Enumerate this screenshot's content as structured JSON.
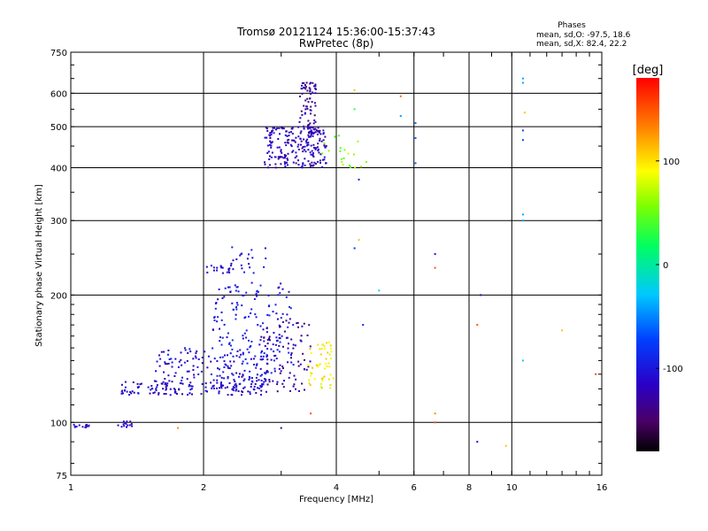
{
  "header": {
    "title_line1": "Tromsø 20121124 15:36:00-15:37:43",
    "title_line2": "RwPretec (8p)"
  },
  "stats": {
    "heading": "Phases",
    "o_line": "mean, sd,O: -97.5, 18.6",
    "x_line": "mean, sd,X:  82.4, 22.2"
  },
  "colorbar": {
    "unit_label": "[deg]",
    "tick_labels": [
      "100",
      "0",
      "-100"
    ],
    "tick_values": [
      100,
      0,
      -100
    ],
    "range": [
      -180,
      180
    ]
  },
  "chart_data": {
    "type": "scatter",
    "title": "Tromsø 20121124 15:36:00-15:37:43",
    "subtitle": "RwPretec (8p)",
    "xlabel": "Frequency [MHz]",
    "ylabel": "Stationary phase Virtual Height [km]",
    "xscale": "log",
    "yscale": "log",
    "xlim": [
      1,
      16
    ],
    "ylim": [
      75,
      750
    ],
    "xticks": [
      1,
      2,
      4,
      6,
      8,
      10,
      16
    ],
    "xtick_labels": [
      "1",
      "2",
      "4",
      "6",
      "8",
      "10",
      "16"
    ],
    "yticks": [
      75,
      100,
      200,
      300,
      400,
      500,
      600,
      750
    ],
    "ytick_labels": [
      "75",
      "100",
      "200",
      "300",
      "400",
      "500",
      "600",
      "750"
    ],
    "grid": true,
    "color_encodes": "phase [deg]",
    "clusters": [
      {
        "x": [
          1.0,
          1.1
        ],
        "y": [
          97,
          99
        ],
        "phase": -110,
        "count": 14
      },
      {
        "x": [
          1.28,
          1.38
        ],
        "y": [
          97,
          102
        ],
        "phase": -112,
        "count": 14
      },
      {
        "x": [
          1.3,
          2.75
        ],
        "y": [
          116,
          125
        ],
        "phase": -112,
        "count": 150
      },
      {
        "x": [
          1.55,
          2.9
        ],
        "y": [
          125,
          150
        ],
        "phase": -108,
        "count": 130
      },
      {
        "x": [
          2.1,
          3.2
        ],
        "y": [
          125,
          215
        ],
        "phase": -100,
        "count": 170
      },
      {
        "x": [
          2.7,
          3.5
        ],
        "y": [
          118,
          175
        ],
        "phase": -130,
        "count": 80
      },
      {
        "x": [
          2.0,
          2.3
        ],
        "y": [
          225,
          235
        ],
        "phase": -108,
        "count": 18
      },
      {
        "x": [
          2.3,
          2.8
        ],
        "y": [
          225,
          260
        ],
        "phase": -105,
        "count": 22
      },
      {
        "x": [
          3.45,
          3.95
        ],
        "y": [
          120,
          155
        ],
        "phase": 95,
        "count": 50
      },
      {
        "x": [
          2.75,
          3.8
        ],
        "y": [
          400,
          500
        ],
        "phase": -118,
        "count": 220
      },
      {
        "x": [
          3.3,
          3.6
        ],
        "y": [
          480,
          640
        ],
        "phase": -130,
        "count": 70
      },
      {
        "x": [
          3.7,
          4.7
        ],
        "y": [
          400,
          480
        ],
        "phase": 60,
        "count": 20
      }
    ],
    "sparse_points": [
      {
        "x": 4.4,
        "y": 610,
        "phase": 110
      },
      {
        "x": 4.4,
        "y": 550,
        "phase": 30
      },
      {
        "x": 4.5,
        "y": 375,
        "phase": -90
      },
      {
        "x": 4.5,
        "y": 270,
        "phase": 110
      },
      {
        "x": 4.4,
        "y": 258,
        "phase": -80
      },
      {
        "x": 4.6,
        "y": 170,
        "phase": -90
      },
      {
        "x": 5.0,
        "y": 205,
        "phase": -20
      },
      {
        "x": 5.6,
        "y": 590,
        "phase": 140
      },
      {
        "x": 5.6,
        "y": 530,
        "phase": -40
      },
      {
        "x": 6.05,
        "y": 510,
        "phase": -60
      },
      {
        "x": 6.05,
        "y": 470,
        "phase": -60
      },
      {
        "x": 6.05,
        "y": 410,
        "phase": -60
      },
      {
        "x": 6.7,
        "y": 250,
        "phase": -110
      },
      {
        "x": 6.7,
        "y": 232,
        "phase": 150
      },
      {
        "x": 6.7,
        "y": 105,
        "phase": 130
      },
      {
        "x": 6.7,
        "y": 100,
        "phase": 150
      },
      {
        "x": 3.0,
        "y": 97,
        "phase": -130
      },
      {
        "x": 3.5,
        "y": 105,
        "phase": 150
      },
      {
        "x": 1.75,
        "y": 97,
        "phase": 130
      },
      {
        "x": 8.35,
        "y": 170,
        "phase": 150
      },
      {
        "x": 8.5,
        "y": 200,
        "phase": -110
      },
      {
        "x": 8.35,
        "y": 90,
        "phase": -110
      },
      {
        "x": 9.7,
        "y": 88,
        "phase": 110
      },
      {
        "x": 10.6,
        "y": 650,
        "phase": -40
      },
      {
        "x": 10.6,
        "y": 635,
        "phase": -40
      },
      {
        "x": 10.7,
        "y": 540,
        "phase": 110
      },
      {
        "x": 10.6,
        "y": 490,
        "phase": -70
      },
      {
        "x": 10.6,
        "y": 465,
        "phase": -70
      },
      {
        "x": 10.6,
        "y": 310,
        "phase": -40
      },
      {
        "x": 10.6,
        "y": 300,
        "phase": -40
      },
      {
        "x": 10.6,
        "y": 140,
        "phase": -20
      },
      {
        "x": 15.5,
        "y": 130,
        "phase": 150
      },
      {
        "x": 13.0,
        "y": 165,
        "phase": 110
      }
    ]
  }
}
